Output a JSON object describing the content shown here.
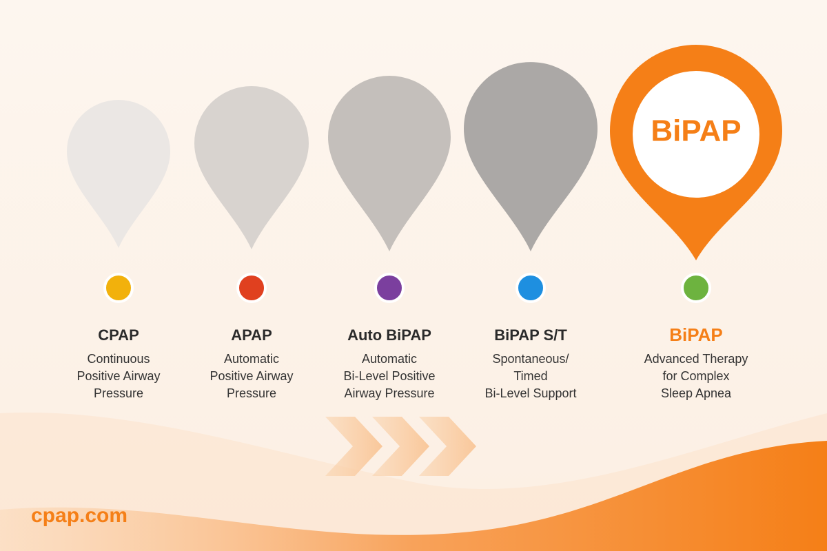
{
  "steps": [
    {
      "name": "CPAP",
      "description": [
        "Continuous",
        "Positive Airway",
        "Pressure"
      ]
    },
    {
      "name": "APAP",
      "description": [
        "Automatic",
        "Positive Airway",
        "Pressure"
      ]
    },
    {
      "name": "Auto BiPAP",
      "description": [
        "Automatic",
        "Bi-Level Positive",
        "Airway Pressure"
      ]
    },
    {
      "name": "BiPAP S/T",
      "description": [
        "Spontaneous/",
        "Timed",
        "Bi-Level Support"
      ]
    },
    {
      "name": "BiPAP",
      "description": [
        "Advanced Therapy",
        "for Complex",
        "Sleep Apnea"
      ]
    }
  ],
  "featured": {
    "pin_label": "BiPAP"
  },
  "brand": "cpap.com"
}
